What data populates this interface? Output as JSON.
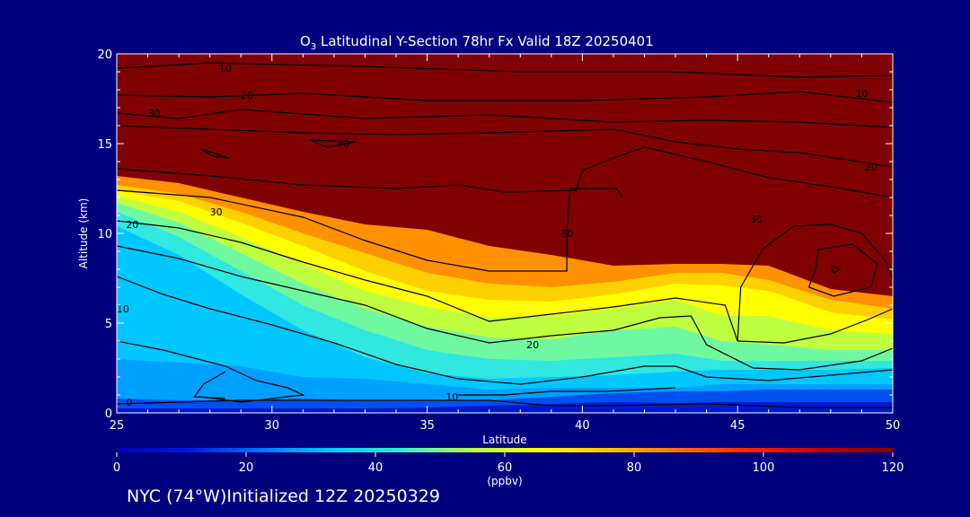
{
  "chart_data": {
    "type": "heatmap",
    "title_prefix": "O",
    "title_sub": "3",
    "title_rest": " Latitudinal Y-Section 78hr  Fx Valid 18Z 20250401",
    "xlabel": "Latitude",
    "ylabel": "Altitude (km)",
    "xlim": [
      25,
      50
    ],
    "ylim": [
      0,
      20
    ],
    "x_ticks": [
      "25",
      "30",
      "35",
      "40",
      "45",
      "50"
    ],
    "y_ticks": [
      "0",
      "5",
      "10",
      "15",
      "20"
    ],
    "colorbar": {
      "range": [
        0,
        120
      ],
      "ticks": [
        "0",
        "20",
        "40",
        "60",
        "80",
        "100",
        "120"
      ],
      "unit": "(ppbv)",
      "colors": [
        "#0000b0",
        "#0018e0",
        "#0070ff",
        "#00c8ff",
        "#30ecd0",
        "#b0ff50",
        "#ffff00",
        "#ffc000",
        "#ff7000",
        "#ff2000",
        "#c00000",
        "#800000"
      ]
    },
    "contour_labels": [
      {
        "text": "10",
        "lat": 28.5,
        "alt": 19.2
      },
      {
        "text": "20",
        "lat": 29.2,
        "alt": 17.7
      },
      {
        "text": "30",
        "lat": 26.2,
        "alt": 16.7
      },
      {
        "text": "40",
        "lat": 32.3,
        "alt": 15.0
      },
      {
        "text": "10",
        "lat": 49.0,
        "alt": 17.8
      },
      {
        "text": "20",
        "lat": 49.3,
        "alt": 13.7
      },
      {
        "text": "30",
        "lat": 45.6,
        "alt": 10.8
      },
      {
        "text": "30",
        "lat": 39.5,
        "alt": 10.0
      },
      {
        "text": "30",
        "lat": 28.2,
        "alt": 11.2
      },
      {
        "text": "20",
        "lat": 25.5,
        "alt": 10.5
      },
      {
        "text": "10",
        "lat": 25.2,
        "alt": 5.8
      },
      {
        "text": "20",
        "lat": 38.4,
        "alt": 3.8
      },
      {
        "text": "10",
        "lat": 35.8,
        "alt": 0.9
      },
      {
        "text": "0",
        "lat": 25.4,
        "alt": 0.6
      }
    ]
  },
  "footer": "NYC (74°W)Initialized 12Z 20250329"
}
